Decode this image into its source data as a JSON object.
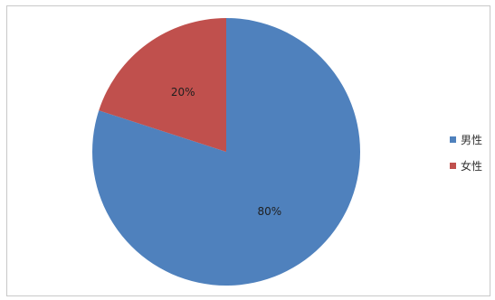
{
  "chart_data": {
    "type": "pie",
    "categories": [
      "男性",
      "女性"
    ],
    "values": [
      80,
      20
    ],
    "data_labels": [
      "80%",
      "20%"
    ],
    "colors": [
      "#4f81bd",
      "#c0504d"
    ],
    "legend": {
      "position": "right",
      "entries": [
        "男性",
        "女性"
      ]
    }
  }
}
